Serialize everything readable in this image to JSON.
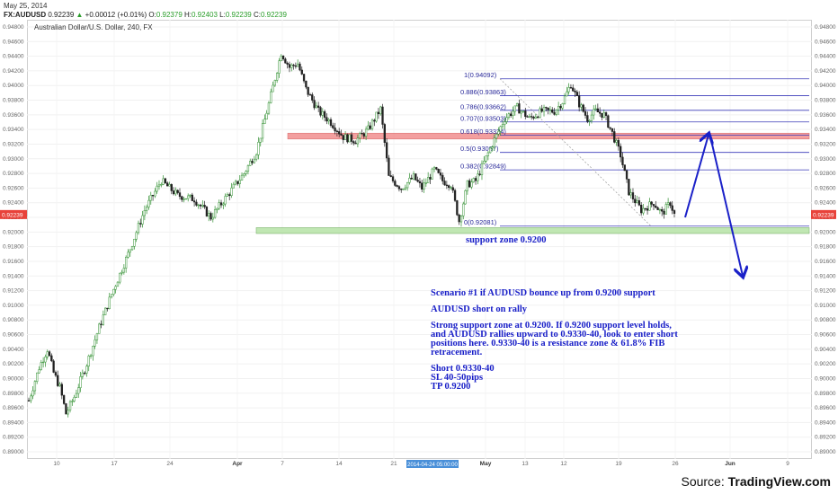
{
  "header": {
    "date": "May 25, 2014",
    "symbol": "FX:AUDUSD",
    "last": "0.92239",
    "change": "+0.00012 (+0.01%)",
    "o_label": "O:",
    "o_value": "0.92379",
    "h_label": "H:",
    "h_value": "0.92403",
    "l_label": "L:",
    "l_value": "0.92239",
    "c_label": "C:",
    "c_value": "0.92239"
  },
  "chart_data": {
    "type": "candlestick",
    "title": "Australian Dollar/U.S. Dollar, 240, FX",
    "current_price": "0.92239",
    "y_ticks": [
      "0.94800",
      "0.94600",
      "0.94400",
      "0.94200",
      "0.94000",
      "0.93800",
      "0.93600",
      "0.93400",
      "0.93200",
      "0.93000",
      "0.92800",
      "0.92600",
      "0.92400",
      "0.92200",
      "0.92000",
      "0.91800",
      "0.91600",
      "0.91400",
      "0.91200",
      "0.91000",
      "0.90800",
      "0.90600",
      "0.90400",
      "0.90200",
      "0.90000",
      "0.89800",
      "0.89600",
      "0.89400",
      "0.89200",
      "0.89000"
    ],
    "ylim": [
      0.8895,
      0.9491
    ],
    "x_ticks": [
      "10",
      "17",
      "24",
      "Apr",
      "7",
      "14",
      "21",
      "May",
      "13",
      "12",
      "19",
      "26",
      "Jun",
      "9"
    ],
    "x_cursor_label": "2014-04-24 05:00:00",
    "price_path_keypoints": [
      [
        0,
        0.897
      ],
      [
        5,
        0.9015
      ],
      [
        9,
        0.904
      ],
      [
        12,
        0.9008
      ],
      [
        15,
        0.8988
      ],
      [
        18,
        0.8952
      ],
      [
        22,
        0.8975
      ],
      [
        28,
        0.902
      ],
      [
        34,
        0.907
      ],
      [
        40,
        0.9115
      ],
      [
        48,
        0.917
      ],
      [
        56,
        0.923
      ],
      [
        64,
        0.927
      ],
      [
        72,
        0.925
      ],
      [
        80,
        0.9245
      ],
      [
        88,
        0.922
      ],
      [
        96,
        0.925
      ],
      [
        104,
        0.928
      ],
      [
        110,
        0.931
      ],
      [
        116,
        0.9375
      ],
      [
        122,
        0.9445
      ],
      [
        126,
        0.9425
      ],
      [
        130,
        0.943
      ],
      [
        134,
        0.9395
      ],
      [
        140,
        0.9365
      ],
      [
        146,
        0.935
      ],
      [
        152,
        0.933
      ],
      [
        158,
        0.9325
      ],
      [
        164,
        0.934
      ],
      [
        170,
        0.9368
      ],
      [
        174,
        0.9275
      ],
      [
        180,
        0.926
      ],
      [
        186,
        0.9275
      ],
      [
        190,
        0.926
      ],
      [
        196,
        0.9285
      ],
      [
        200,
        0.927
      ],
      [
        204,
        0.9265
      ],
      [
        208,
        0.9215
      ],
      [
        212,
        0.9265
      ],
      [
        216,
        0.927
      ],
      [
        220,
        0.9295
      ],
      [
        224,
        0.932
      ],
      [
        230,
        0.9355
      ],
      [
        236,
        0.937
      ],
      [
        242,
        0.9355
      ],
      [
        248,
        0.9365
      ],
      [
        254,
        0.9365
      ],
      [
        258,
        0.9378
      ],
      [
        262,
        0.9402
      ],
      [
        266,
        0.9375
      ],
      [
        270,
        0.9355
      ],
      [
        274,
        0.9365
      ],
      [
        278,
        0.936
      ],
      [
        282,
        0.9335
      ],
      [
        286,
        0.9305
      ],
      [
        290,
        0.9255
      ],
      [
        296,
        0.923
      ],
      [
        302,
        0.924
      ],
      [
        306,
        0.9225
      ],
      [
        310,
        0.924
      ],
      [
        312,
        0.92239
      ]
    ],
    "fibonacci": [
      {
        "label": "1(0.94092)",
        "value": 0.94092
      },
      {
        "label": "0.886(0.93863)",
        "value": 0.93863
      },
      {
        "label": "0.786(0.93662)",
        "value": 0.93662
      },
      {
        "label": "0.707(0.93503)",
        "value": 0.93503
      },
      {
        "label": "0.618(0.93324)",
        "value": 0.93324
      },
      {
        "label": "0.5(0.93087)",
        "value": 0.93087
      },
      {
        "label": "0.382(0.92849)",
        "value": 0.92849
      },
      {
        "label": "0(0.92081)",
        "value": 0.92081
      }
    ],
    "zones": [
      {
        "name": "resistance",
        "from": 0.9327,
        "to": 0.9335,
        "color": "#f08080"
      },
      {
        "name": "support",
        "from": 0.9198,
        "to": 0.9206,
        "color": "#b6e3a6"
      }
    ],
    "colors": {
      "up": "#2f8f2f",
      "down": "#222222",
      "fib": "#3a3ab8",
      "arrow": "#1a20c8",
      "price_tag": "#e8423a"
    }
  },
  "annotations": {
    "support_label": "support zone 0.9200",
    "scenario_title": "Scenario #1 if AUDUSD bounce up from 0.9200 support",
    "short_on_rally": "AUDUSD short on rally",
    "paragraph": "Strong support zone at 0.9200. If 0.9200 support level holds, and AUDUSD rallies upward to 0.9330-40, look to enter short positions here. 0.9330-40 is a resistance zone & 61.8% FIB retracement.",
    "short": "Short 0.9330-40",
    "sl": "SL 40-50pips",
    "tp": "TP 0.9200"
  },
  "source": {
    "prefix": "Source:",
    "name": "TradingView.com"
  }
}
